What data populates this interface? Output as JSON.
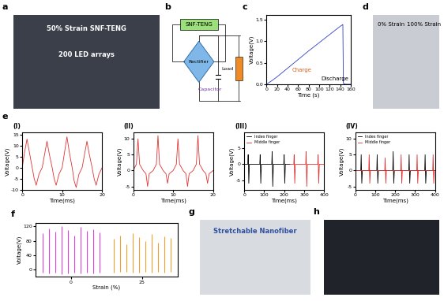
{
  "photos": [
    {
      "panel": "a",
      "texts": [
        "50% Strain SNF-TENG",
        "200 LED arrays"
      ]
    },
    {
      "panel": "d",
      "texts": [
        "0% Strain",
        "100% Strain"
      ]
    },
    {
      "panel": "g",
      "texts": [
        "Stretchable Nanofiber"
      ]
    },
    {
      "panel": "h",
      "texts": []
    }
  ],
  "diagram": {
    "panel": "b",
    "nodes": [
      {
        "label": "SNF-TENG"
      },
      {
        "label": "Rectifier"
      },
      {
        "label": "Capacitor"
      },
      {
        "label": "Load"
      }
    ]
  },
  "chart_data": [
    {
      "type": "line",
      "panel": "c",
      "xlabel": "Time (s)",
      "ylabel": "Voltage(V)",
      "annotations": [
        "Charge",
        "Discharge"
      ],
      "xlim": [
        0,
        160
      ],
      "xticks": [
        0,
        20,
        40,
        60,
        80,
        100,
        120,
        140,
        160
      ],
      "ylim": [
        0,
        1.6
      ],
      "yticks": [
        {
          "value": 0,
          "label": "0.0"
        },
        {
          "value": 0.5,
          "label": "0.5"
        },
        {
          "value": 1.0,
          "label": "1.0"
        },
        {
          "value": 1.5,
          "label": "1.5"
        }
      ],
      "series": [
        {
          "color": "#2a3cc8",
          "x": [
            0,
            10,
            20,
            30,
            40,
            60,
            80,
            100,
            120,
            140,
            145,
            146,
            150,
            160
          ],
          "values": [
            0,
            0.08,
            0.17,
            0.27,
            0.37,
            0.57,
            0.77,
            0.96,
            1.15,
            1.34,
            1.38,
            0.02,
            0,
            0
          ]
        }
      ]
    },
    {
      "type": "line",
      "panel": "e",
      "subpanel": "(I)",
      "xlabel": "Time(ms)",
      "ylabel": "Voltage(V)",
      "xlim": [
        0,
        20
      ],
      "xticks": [
        0,
        10,
        20
      ],
      "ylim": [
        -10,
        16
      ],
      "yticks": [
        -10,
        -5,
        0,
        5,
        10,
        15
      ],
      "series": [
        {
          "color": "#e03030",
          "x": [
            0,
            0.6,
            1.2,
            1.8,
            2.5,
            3.0,
            3.5,
            4.2,
            5,
            5.6,
            6.2,
            6.8,
            7.5,
            8.0,
            8.5,
            9.2,
            10,
            10.6,
            11.2,
            11.8,
            12.5,
            13.0,
            13.5,
            14.2,
            15,
            15.6,
            16.2,
            16.8,
            17.5,
            18.0,
            18.5,
            19.2,
            20
          ],
          "values": [
            0,
            7,
            13,
            7,
            0,
            -5,
            -8,
            -3,
            0,
            6,
            12,
            6,
            0,
            -5,
            -8,
            -3,
            0,
            7,
            14,
            7,
            0,
            -6,
            -9,
            -3,
            0,
            6,
            12,
            6,
            0,
            -5,
            -8,
            -3,
            0
          ]
        }
      ]
    },
    {
      "type": "line",
      "subpanel": "(II)",
      "xlabel": "Time(ms)",
      "ylabel": "Voltage(V)",
      "xlim": [
        0,
        20
      ],
      "xticks": [
        0,
        10,
        20
      ],
      "ylim": [
        -6,
        12
      ],
      "yticks": [
        -5,
        0,
        5,
        10
      ],
      "series": [
        {
          "color": "#e03030",
          "x": [
            0,
            0.8,
            1.2,
            1.6,
            2.5,
            3.2,
            3.6,
            4.0,
            5,
            5.8,
            6.2,
            6.6,
            7.5,
            8.2,
            8.6,
            9.0,
            10,
            10.8,
            11.2,
            11.6,
            12.5,
            13.2,
            13.6,
            14.0,
            15,
            15.8,
            16.2,
            16.6,
            17.5,
            18.2,
            18.6,
            19.0,
            20
          ],
          "values": [
            0,
            2,
            10,
            2,
            0,
            -1,
            -5,
            -1,
            0,
            2,
            11,
            2,
            0,
            -1,
            -4,
            -1,
            0,
            2,
            10,
            2,
            0,
            -1,
            -5,
            -1,
            0,
            2,
            11,
            2,
            0,
            -1,
            -4,
            -1,
            0
          ]
        }
      ]
    },
    {
      "type": "line",
      "subpanel": "(III)",
      "xlabel": "Time(ms)",
      "ylabel": "Voltage(V)",
      "legend": "upper left",
      "xlim": [
        0,
        400
      ],
      "xticks": [
        0,
        100,
        200,
        300,
        400
      ],
      "ylim": [
        -8,
        10
      ],
      "yticks": [
        -5,
        0,
        5
      ],
      "series": [
        {
          "name": "Index finger",
          "color": "#000000",
          "x": [
            0,
            18,
            20,
            23,
            26,
            78,
            80,
            83,
            86,
            138,
            140,
            143,
            146,
            198,
            200,
            203,
            206,
            230
          ],
          "values": [
            0,
            0,
            3,
            -6,
            0,
            0,
            3,
            -6,
            0,
            0,
            4,
            -7,
            0,
            0,
            3,
            -6,
            0,
            0
          ]
        },
        {
          "name": "Middle finger",
          "color": "#e03030",
          "x": [
            230,
            248,
            250,
            253,
            256,
            308,
            310,
            313,
            316,
            368,
            370,
            373,
            376,
            400
          ],
          "values": [
            0,
            0,
            3,
            -6,
            0,
            0,
            4,
            -7,
            0,
            0,
            3,
            -6,
            0,
            0
          ]
        }
      ]
    },
    {
      "type": "line",
      "subpanel": "(IV)",
      "xlabel": "Time(ms)",
      "ylabel": "Voltage(V)",
      "legend": "upper left",
      "xlim": [
        0,
        400
      ],
      "xticks": [
        0,
        100,
        200,
        300,
        400
      ],
      "ylim": [
        -6,
        12
      ],
      "yticks": [
        -5,
        0,
        5,
        10
      ],
      "series": [
        {
          "name": "Index finger",
          "color": "#000000",
          "x": [
            0,
            28,
            30,
            33,
            36,
            108,
            110,
            113,
            116,
            188,
            190,
            193,
            196,
            268,
            270,
            273,
            276,
            348,
            350,
            353,
            356,
            400
          ],
          "values": [
            0,
            0,
            5,
            -4,
            0,
            0,
            5,
            -4,
            0,
            0,
            6,
            -4,
            0,
            0,
            5,
            -4,
            0,
            0,
            5,
            -4,
            0,
            0
          ]
        },
        {
          "name": "Middle finger",
          "color": "#e03030",
          "x": [
            0,
            68,
            70,
            73,
            76,
            148,
            150,
            153,
            156,
            228,
            230,
            233,
            236,
            308,
            310,
            313,
            316,
            388,
            390,
            393,
            396,
            400
          ],
          "values": [
            0,
            0,
            5,
            -4,
            0,
            0,
            4,
            -4,
            0,
            0,
            5,
            -4,
            0,
            0,
            5,
            -4,
            0,
            0,
            5,
            -4,
            0,
            0
          ]
        }
      ]
    },
    {
      "type": "spikes",
      "panel": "f",
      "xlabel": "Strain (%)",
      "ylabel": "Voltage(V)",
      "categories": [
        "0",
        "25"
      ],
      "ylim": [
        -20,
        130
      ],
      "yticks": [
        0,
        40,
        80,
        120
      ],
      "series": [
        {
          "color": "#e040e0",
          "peaks": [
            100,
            115,
            105,
            120,
            110,
            95,
            118,
            108,
            112,
            104
          ],
          "troughs": [
            -8,
            -10,
            -9,
            -12,
            -10,
            -8,
            -11,
            -9,
            -10,
            -9
          ]
        },
        {
          "color": "#f0a030",
          "peaks": [
            85,
            95,
            70,
            100,
            90,
            80,
            98,
            75,
            92,
            88
          ],
          "troughs": [
            -8,
            -7,
            -6,
            -9,
            -8,
            -7,
            -9,
            -6,
            -8,
            -7
          ]
        }
      ]
    }
  ]
}
